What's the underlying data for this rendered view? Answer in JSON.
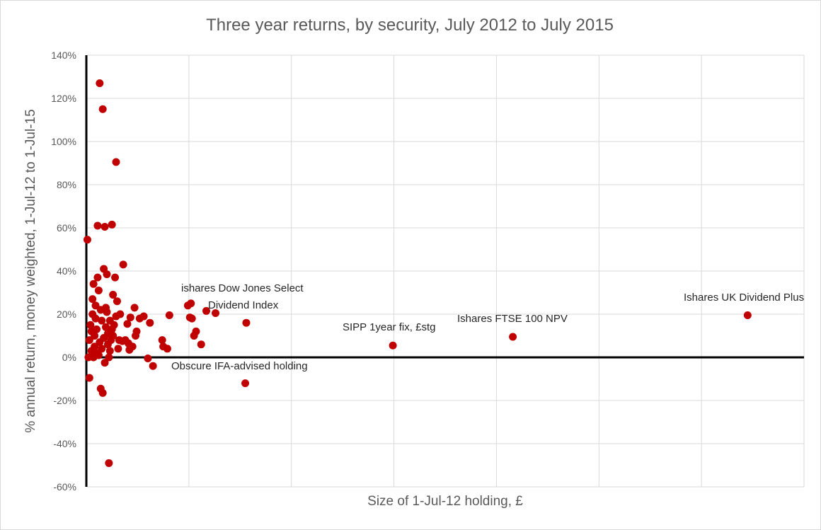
{
  "chart_data": {
    "type": "scatter",
    "title": "Three year returns, by security, July 2012 to July 2015",
    "xlabel": "Size of 1-Jul-12 holding, £",
    "ylabel": "% annual return, money weighted, 1-Jul-12 to 1-Jul-15",
    "ylim": [
      -60,
      140
    ],
    "y_ticks": [
      {
        "value": 140,
        "label": "140%"
      },
      {
        "value": 120,
        "label": "120%"
      },
      {
        "value": 100,
        "label": "100%"
      },
      {
        "value": 80,
        "label": "80%"
      },
      {
        "value": 60,
        "label": "60%"
      },
      {
        "value": 40,
        "label": "40%"
      },
      {
        "value": 20,
        "label": "20%"
      },
      {
        "value": 0,
        "label": "0%"
      },
      {
        "value": -20,
        "label": "-20%"
      },
      {
        "value": -40,
        "label": "-40%"
      },
      {
        "value": -60,
        "label": "-60%"
      }
    ],
    "x_tick_labels_shown": false,
    "grid": true,
    "marker_color": "#c00000",
    "points": [
      [
        0.3,
        -9.5
      ],
      [
        0.2,
        0
      ],
      [
        0.3,
        8
      ],
      [
        0.4,
        15
      ],
      [
        0.5,
        3
      ],
      [
        0.5,
        12
      ],
      [
        0.6,
        20
      ],
      [
        0.6,
        27
      ],
      [
        0.7,
        34
      ],
      [
        0.7,
        0
      ],
      [
        0.8,
        5
      ],
      [
        0.8,
        10
      ],
      [
        0.9,
        18
      ],
      [
        0.9,
        24
      ],
      [
        1.0,
        2
      ],
      [
        1.0,
        13
      ],
      [
        1.1,
        37
      ],
      [
        1.1,
        61
      ],
      [
        1.2,
        31
      ],
      [
        1.2,
        1
      ],
      [
        1.3,
        127
      ],
      [
        1.3,
        7
      ],
      [
        1.4,
        22
      ],
      [
        1.4,
        -14.5
      ],
      [
        1.5,
        17
      ],
      [
        1.5,
        4
      ],
      [
        1.6,
        -16.5
      ],
      [
        1.6,
        115
      ],
      [
        1.7,
        41
      ],
      [
        1.7,
        9
      ],
      [
        1.8,
        60.5
      ],
      [
        1.8,
        -2.5
      ],
      [
        1.9,
        23
      ],
      [
        1.9,
        14
      ],
      [
        2.0,
        38.5
      ],
      [
        2.0,
        21
      ],
      [
        2.1,
        11
      ],
      [
        2.1,
        6
      ],
      [
        2.2,
        -49
      ],
      [
        2.2,
        0
      ],
      [
        2.3,
        3
      ],
      [
        2.3,
        17
      ],
      [
        2.4,
        8
      ],
      [
        2.5,
        61.5
      ],
      [
        2.5,
        13
      ],
      [
        2.6,
        29
      ],
      [
        2.6,
        10
      ],
      [
        2.7,
        15
      ],
      [
        2.8,
        37
      ],
      [
        2.9,
        90.5
      ],
      [
        2.9,
        19
      ],
      [
        3.0,
        26
      ],
      [
        3.1,
        4
      ],
      [
        3.2,
        8
      ],
      [
        3.3,
        20
      ],
      [
        3.5,
        7.5
      ],
      [
        3.6,
        43
      ],
      [
        3.8,
        8
      ],
      [
        4.0,
        15.5
      ],
      [
        4.1,
        6.5
      ],
      [
        4.2,
        3.5
      ],
      [
        4.3,
        18.5
      ],
      [
        4.5,
        5
      ],
      [
        4.7,
        23
      ],
      [
        4.8,
        10
      ],
      [
        4.9,
        12
      ],
      [
        5.2,
        18
      ],
      [
        5.6,
        19
      ],
      [
        6.0,
        -0.5
      ],
      [
        6.2,
        16
      ],
      [
        6.5,
        -4
      ],
      [
        7.4,
        8
      ],
      [
        7.5,
        5
      ],
      [
        7.9,
        4
      ],
      [
        8.1,
        19.5
      ],
      [
        9.9,
        24
      ],
      [
        10.2,
        25
      ],
      [
        10.1,
        18.5
      ],
      [
        10.3,
        18
      ],
      [
        10.5,
        10
      ],
      [
        10.7,
        12
      ],
      [
        11.2,
        6
      ],
      [
        11.7,
        21.5
      ],
      [
        12.6,
        20.5
      ],
      [
        0.1,
        54.5
      ],
      [
        15.5,
        -12
      ],
      [
        15.6,
        16
      ],
      [
        29.9,
        5.5
      ],
      [
        41.6,
        9.5
      ],
      [
        64.5,
        19.5
      ]
    ],
    "annotations": [
      {
        "text": "ishares Dow Jones Select",
        "x": 17,
        "y": 28
      },
      {
        "text": "Dividend Index",
        "x": 17,
        "y": 23
      },
      {
        "text": "Obscure IFA-advised holding",
        "x": 17,
        "y": -4.5
      },
      {
        "text": "SIPP 1year fix, £stg",
        "x": 17,
        "y": 12.5
      },
      {
        "text": "Ishares FTSE 100 NPV",
        "x": 17,
        "y": 16.5
      },
      {
        "text": "Ishares UK Dividend Plus",
        "x": 17,
        "y": 26
      }
    ]
  }
}
